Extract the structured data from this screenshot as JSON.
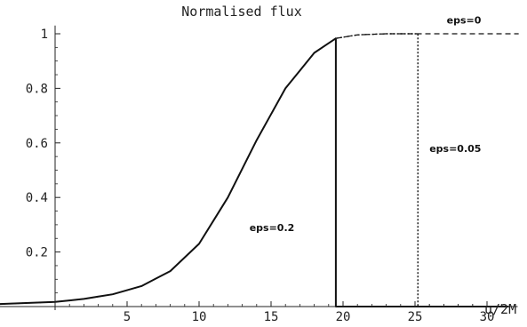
{
  "chart_data": {
    "type": "line",
    "title": "Normalised flux",
    "xlabel": "u/2M",
    "ylabel": "",
    "xlim": [
      -8.5,
      32.5
    ],
    "ylim": [
      -0.02,
      1.03
    ],
    "x_ticks": [
      5,
      10,
      15,
      20,
      25,
      30
    ],
    "x_tick_labels": [
      "5",
      "10",
      "15",
      "20",
      "25",
      "30"
    ],
    "y_ticks": [
      0.2,
      0.4,
      0.6,
      0.8,
      1
    ],
    "y_tick_labels": [
      "0.2",
      "0.4",
      "0.6",
      "0.8",
      "1"
    ],
    "grid": false,
    "series": [
      {
        "name": "eps=0",
        "style": "dashed",
        "x": [
          -8.5,
          0,
          2,
          4,
          6,
          8,
          10,
          12,
          14,
          16,
          18,
          19.5,
          21,
          23,
          25.2,
          27,
          29,
          31,
          32.2
        ],
        "values": [
          0,
          0.017,
          0.028,
          0.045,
          0.075,
          0.13,
          0.23,
          0.4,
          0.61,
          0.8,
          0.93,
          0.983,
          0.996,
          1.0,
          1.0,
          1.0,
          1.0,
          1.0,
          1.0
        ]
      },
      {
        "name": "eps=0.05",
        "style": "dotted",
        "x": [
          -8.5,
          0,
          2,
          4,
          6,
          8,
          10,
          12,
          14,
          16,
          18,
          19.5,
          21,
          23,
          25.2,
          25.2,
          31.5
        ],
        "values": [
          0,
          0.017,
          0.028,
          0.045,
          0.075,
          0.13,
          0.23,
          0.4,
          0.61,
          0.8,
          0.93,
          0.983,
          0.996,
          1.0,
          1.0,
          0,
          0
        ]
      },
      {
        "name": "eps=0.2",
        "style": "solid",
        "x": [
          -8.5,
          0,
          2,
          4,
          6,
          8,
          10,
          12,
          14,
          16,
          18,
          19.5,
          19.5,
          31.5
        ],
        "values": [
          0,
          0.017,
          0.028,
          0.045,
          0.075,
          0.13,
          0.23,
          0.4,
          0.61,
          0.8,
          0.93,
          0.983,
          0,
          0
        ]
      }
    ],
    "annotations": [
      {
        "text": "eps=0",
        "x": 27.2,
        "y": 1.05
      },
      {
        "text": "eps=0.05",
        "x": 26.0,
        "y": 0.58
      },
      {
        "text": "eps=0.2",
        "x": 13.5,
        "y": 0.29
      }
    ]
  }
}
